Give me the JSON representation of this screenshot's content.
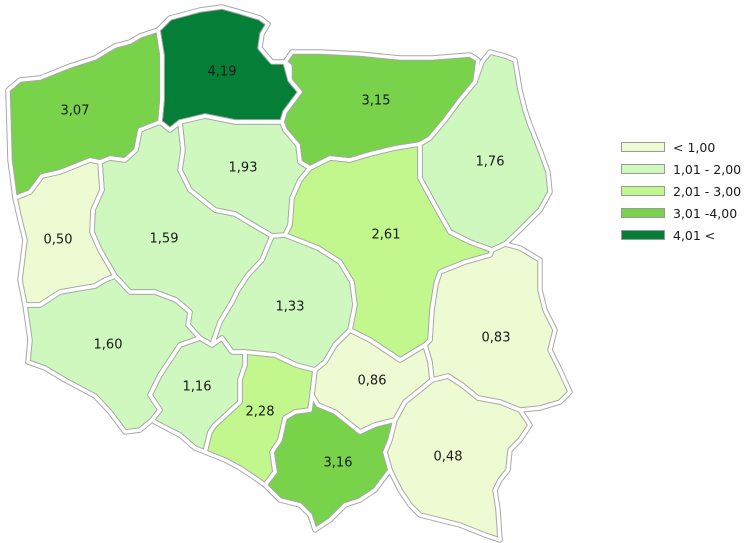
{
  "legend": [
    {
      "label": "< 1,00",
      "color": "#eefbd2"
    },
    {
      "label": "1,01 - 2,00",
      "color": "#cef8be"
    },
    {
      "label": "2,01 - 3,00",
      "color": "#c1f78d"
    },
    {
      "label": "3,01 -4,00",
      "color": "#78d24a"
    },
    {
      "label": "4,01 <",
      "color": "#057f38"
    }
  ],
  "regions": [
    {
      "id": "zachodniopomorskie",
      "value": "3,07",
      "color": "#78d24a"
    },
    {
      "id": "pomorskie",
      "value": "4,19",
      "color": "#057f38"
    },
    {
      "id": "warminsko-mazurskie",
      "value": "3,15",
      "color": "#78d24a"
    },
    {
      "id": "podlaskie",
      "value": "1,76",
      "color": "#cef8be"
    },
    {
      "id": "lubuskie",
      "value": "0,50",
      "color": "#eefbd2"
    },
    {
      "id": "wielkopolskie",
      "value": "1,59",
      "color": "#cef8be"
    },
    {
      "id": "kujawsko-pomorskie",
      "value": "1,93",
      "color": "#cef8be"
    },
    {
      "id": "mazowieckie",
      "value": "2,61",
      "color": "#c1f78d"
    },
    {
      "id": "lodzkie",
      "value": "1,33",
      "color": "#cef8be"
    },
    {
      "id": "dolnoslaskie",
      "value": "1,60",
      "color": "#cef8be"
    },
    {
      "id": "opolskie",
      "value": "1,16",
      "color": "#cef8be"
    },
    {
      "id": "slaskie",
      "value": "2,28",
      "color": "#c1f78d"
    },
    {
      "id": "swietokrzyskie",
      "value": "0,86",
      "color": "#eefbd2"
    },
    {
      "id": "lubelskie",
      "value": "0,83",
      "color": "#eefbd2"
    },
    {
      "id": "malopolskie",
      "value": "3,16",
      "color": "#78d24a"
    },
    {
      "id": "podkarpackie",
      "value": "0,48",
      "color": "#eefbd2"
    }
  ]
}
